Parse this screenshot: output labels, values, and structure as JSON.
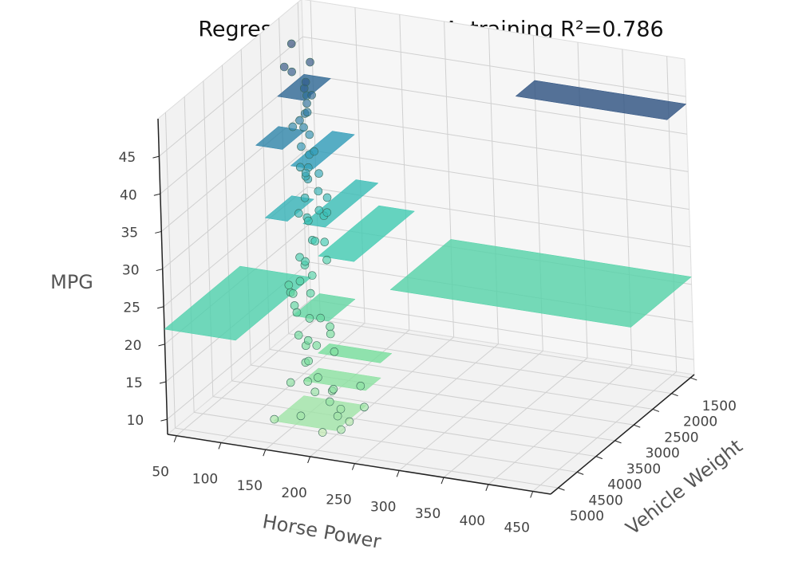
{
  "chart_data": {
    "type": "scatter3d",
    "title": "Regression tree depth 4, training R²=0.786",
    "xlabel": "Horse Power",
    "ylabel": "Vehicle Weight",
    "zlabel": "MPG",
    "xlim": [
      40,
      470
    ],
    "ylim": [
      1400,
      5200
    ],
    "zlim": [
      8,
      50
    ],
    "xticks": [
      50,
      100,
      150,
      200,
      250,
      300,
      350,
      400,
      450
    ],
    "yticks": [
      1500,
      2000,
      2500,
      3000,
      3500,
      4000,
      4500,
      5000
    ],
    "zticks": [
      10,
      15,
      20,
      25,
      30,
      35,
      40,
      45
    ],
    "grid": true,
    "colormap": [
      "#c8ecb0",
      "#72dc9a",
      "#3cc9b4",
      "#2e9ab8",
      "#2d5b8c",
      "#2a3360"
    ],
    "x": [
      46,
      48,
      52,
      65,
      67,
      68,
      58,
      60,
      65,
      70,
      67,
      75,
      76,
      80,
      84,
      88,
      70,
      90,
      88,
      95,
      92,
      97,
      88,
      105,
      100,
      110,
      95,
      100,
      115,
      105,
      110,
      120,
      100,
      110,
      95,
      140,
      150,
      130,
      165,
      150,
      140,
      150,
      170,
      165,
      175,
      190,
      200,
      150,
      180,
      215,
      225,
      210,
      150,
      198,
      220,
      230,
      215,
      193,
      160,
      145,
      130,
      120,
      90,
      85,
      75,
      62,
      71,
      67,
      68,
      54,
      105,
      97,
      72,
      150,
      105
    ],
    "y": [
      1835,
      2085,
      1985,
      1975,
      1965,
      2045,
      1755,
      1800,
      2020,
      1990,
      2145,
      2125,
      2020,
      2275,
      2385,
      2190,
      2120,
      2265,
      2740,
      2375,
      2620,
      2300,
      2500,
      2800,
      2615,
      2600,
      2910,
      2900,
      2670,
      3150,
      2945,
      3230,
      3290,
      3425,
      3110,
      3450,
      3440,
      3504,
      3693,
      3433,
      3850,
      4100,
      4250,
      4400,
      4450,
      4350,
      4650,
      4500,
      4950,
      4800,
      4950,
      4600,
      4950,
      4500,
      4300,
      4450,
      4500,
      4700,
      4250,
      3900,
      3800,
      3600,
      3100,
      2500,
      2230,
      2050,
      1925,
      1850,
      2000,
      2050,
      2400,
      2200,
      2300,
      3800,
      3000
    ],
    "z": [
      46,
      44,
      43,
      41,
      39,
      38,
      39,
      37,
      36,
      35,
      34,
      33,
      33,
      32,
      31,
      31,
      30,
      29,
      28,
      27,
      27,
      26,
      26,
      25,
      24,
      24,
      23,
      22,
      22,
      21,
      21,
      20,
      20,
      19,
      19,
      18,
      17,
      18,
      15,
      16,
      16,
      15,
      14,
      14,
      13,
      13,
      13,
      14,
      12,
      12,
      11,
      12,
      11,
      14,
      14,
      12,
      10,
      9,
      16,
      17,
      17,
      19,
      20,
      29,
      31,
      37,
      40,
      44,
      42,
      36,
      27,
      28,
      32,
      16,
      23
    ],
    "planes": [
      {
        "x": [
          40,
          120
        ],
        "y": [
          3200,
          5200
        ],
        "z": 22
      },
      {
        "x": [
          120,
          160
        ],
        "y": [
          3000,
          3700
        ],
        "z": 19
      },
      {
        "x": [
          160,
          230
        ],
        "y": [
          4400,
          5200
        ],
        "z": 12
      },
      {
        "x": [
          160,
          230
        ],
        "y": [
          4000,
          4400
        ],
        "z": 14
      },
      {
        "x": [
          160,
          230
        ],
        "y": [
          3700,
          4000
        ],
        "z": 16
      },
      {
        "x": [
          200,
          470
        ],
        "y": [
          1400,
          3000
        ],
        "z": 21
      },
      {
        "x": [
          120,
          160
        ],
        "y": [
          1400,
          3000
        ],
        "z": 24
      },
      {
        "x": [
          95,
          120
        ],
        "y": [
          1400,
          2800
        ],
        "z": 27
      },
      {
        "x": [
          70,
          95
        ],
        "y": [
          2500,
          3200
        ],
        "z": 29
      },
      {
        "x": [
          70,
          95
        ],
        "y": [
          1400,
          2500
        ],
        "z": 33
      },
      {
        "x": [
          40,
          70
        ],
        "y": [
          2100,
          2700
        ],
        "z": 36
      },
      {
        "x": [
          40,
          70
        ],
        "y": [
          1400,
          2100
        ],
        "z": 40
      },
      {
        "x": [
          300,
          470
        ],
        "y": [
          1400,
          1900
        ],
        "z": 44
      }
    ]
  }
}
